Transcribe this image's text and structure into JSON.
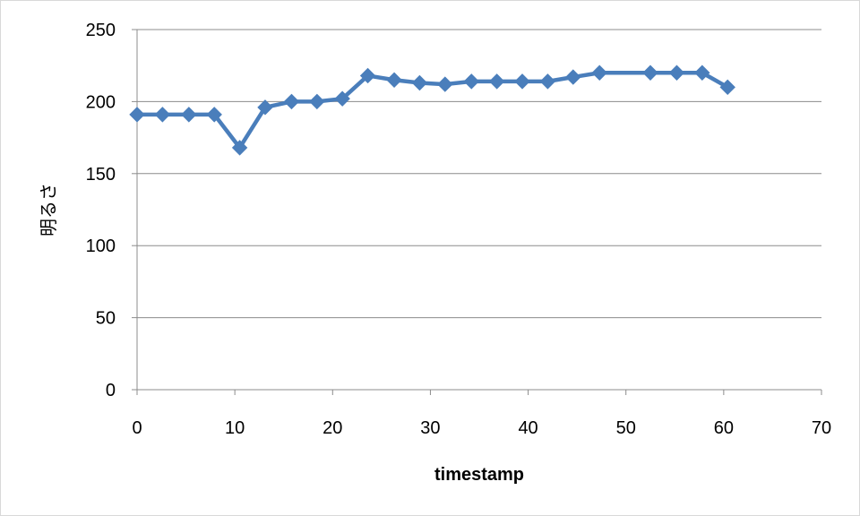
{
  "chart_data": {
    "type": "line",
    "title": "",
    "xlabel": "timestamp",
    "ylabel": "明るさ",
    "xlim": [
      0,
      70
    ],
    "ylim": [
      0,
      250
    ],
    "x_ticks": [
      0,
      10,
      20,
      30,
      40,
      50,
      60,
      70
    ],
    "y_ticks": [
      0,
      50,
      100,
      150,
      200,
      250
    ],
    "grid": "horizontal",
    "legend": "none",
    "marker": "diamond",
    "series": [
      {
        "color": "#4a7ebb",
        "x": [
          0,
          2.6,
          5.3,
          7.9,
          10.5,
          13.1,
          15.8,
          18.4,
          21.0,
          23.6,
          26.3,
          28.9,
          31.5,
          34.2,
          36.8,
          39.4,
          42.0,
          44.6,
          47.3,
          52.5,
          55.2,
          57.8,
          60.4
        ],
        "y": [
          191,
          191,
          191,
          191,
          168,
          196,
          200,
          200,
          202,
          218,
          215,
          213,
          212,
          214,
          214,
          214,
          214,
          217,
          220,
          220,
          220,
          220,
          210
        ]
      }
    ]
  }
}
